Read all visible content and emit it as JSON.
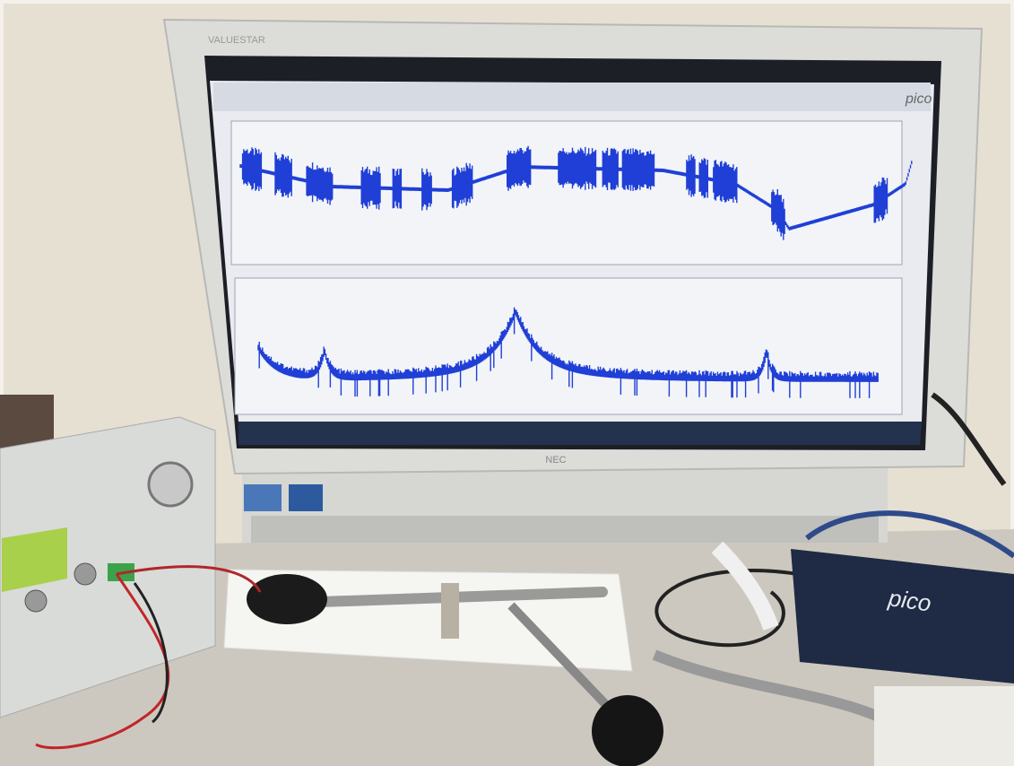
{
  "monitor": {
    "model": "VALUESTAR",
    "brand": "NEC"
  },
  "screen": {
    "logo": "pico"
  },
  "device": {
    "logo": "pico"
  }
}
